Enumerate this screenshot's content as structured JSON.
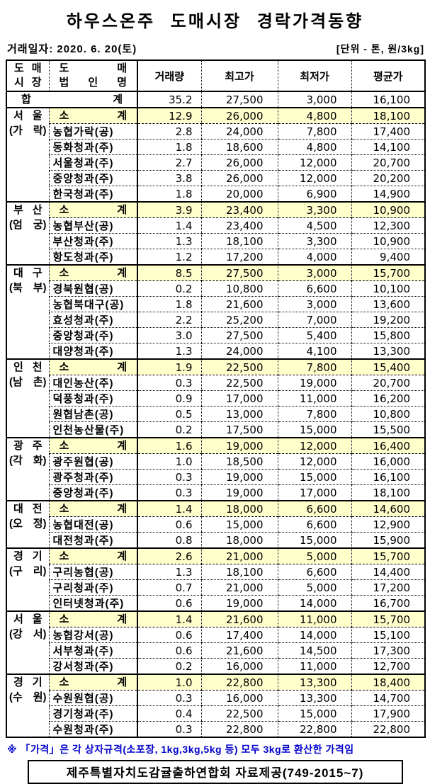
{
  "title": "하우스온주 도매시장 경락가격동향",
  "meta": {
    "date": "거래일자: 2020. 6. 20(토)",
    "unit": "[단위 - 톤, 원/3kg]"
  },
  "table": {
    "headers": {
      "market_line1": "도 매",
      "market_line2": "시 장",
      "corp_line1": "도 매",
      "corp_line2": "법 인 명",
      "volume": "거래량",
      "high": "최고가",
      "low": "최저가",
      "avg": "평균가"
    },
    "total": {
      "label": "합 계",
      "volume": "35.2",
      "high": "27,500",
      "low": "3,000",
      "avg": "16,100"
    },
    "subtotal_label": "소 계",
    "groups": [
      {
        "market": "서 울",
        "location": "(가 락)",
        "subtotal": {
          "volume": "12.9",
          "high": "26,000",
          "low": "4,800",
          "avg": "18,100"
        },
        "companies": [
          {
            "name": "농협가락(공)",
            "volume": "2.8",
            "high": "24,000",
            "low": "7,800",
            "avg": "17,400"
          },
          {
            "name": "동화청과(주)",
            "volume": "1.8",
            "high": "18,600",
            "low": "4,800",
            "avg": "14,100"
          },
          {
            "name": "서울청과(주)",
            "volume": "2.7",
            "high": "26,000",
            "low": "12,000",
            "avg": "20,700"
          },
          {
            "name": "중앙청과(주)",
            "volume": "3.8",
            "high": "26,000",
            "low": "12,000",
            "avg": "20,200"
          },
          {
            "name": "한국청과(주)",
            "volume": "1.8",
            "high": "20,000",
            "low": "6,900",
            "avg": "14,900"
          }
        ]
      },
      {
        "market": "부 산",
        "location": "(엄 궁)",
        "subtotal": {
          "volume": "3.9",
          "high": "23,400",
          "low": "3,300",
          "avg": "10,900"
        },
        "companies": [
          {
            "name": "농협부산(공)",
            "volume": "1.4",
            "high": "23,400",
            "low": "4,500",
            "avg": "12,300"
          },
          {
            "name": "부산청과(주)",
            "volume": "1.3",
            "high": "18,100",
            "low": "3,300",
            "avg": "10,900"
          },
          {
            "name": "항도청과(주)",
            "volume": "1.2",
            "high": "17,200",
            "low": "4,000",
            "avg": "9,400"
          }
        ]
      },
      {
        "market": "대 구",
        "location": "(북 부)",
        "subtotal": {
          "volume": "8.5",
          "high": "27,500",
          "low": "3,000",
          "avg": "15,700"
        },
        "companies": [
          {
            "name": "경북원협(공)",
            "volume": "0.2",
            "high": "10,800",
            "low": "6,600",
            "avg": "10,100"
          },
          {
            "name": "농협북대구(공)",
            "volume": "1.8",
            "high": "21,600",
            "low": "3,000",
            "avg": "13,600"
          },
          {
            "name": "효성청과(주)",
            "volume": "2.2",
            "high": "25,200",
            "low": "7,000",
            "avg": "19,200"
          },
          {
            "name": "중앙청과(주)",
            "volume": "3.0",
            "high": "27,500",
            "low": "5,400",
            "avg": "15,800"
          },
          {
            "name": "대양청과(주)",
            "volume": "1.3",
            "high": "24,000",
            "low": "4,100",
            "avg": "13,300"
          }
        ]
      },
      {
        "market": "인 천",
        "location": "(남 촌)",
        "subtotal": {
          "volume": "1.9",
          "high": "22,500",
          "low": "7,800",
          "avg": "15,400"
        },
        "companies": [
          {
            "name": "대인농산(주)",
            "volume": "0.3",
            "high": "22,500",
            "low": "19,000",
            "avg": "20,700"
          },
          {
            "name": "덕풍청과(주)",
            "volume": "0.9",
            "high": "17,000",
            "low": "11,000",
            "avg": "16,200"
          },
          {
            "name": "원협남촌(공)",
            "volume": "0.5",
            "high": "13,000",
            "low": "7,800",
            "avg": "10,800"
          },
          {
            "name": "인천농산물(주)",
            "volume": "0.2",
            "high": "17,500",
            "low": "15,000",
            "avg": "15,500"
          }
        ]
      },
      {
        "market": "광 주",
        "location": "(각 화)",
        "subtotal": {
          "volume": "1.6",
          "high": "19,000",
          "low": "12,000",
          "avg": "16,400"
        },
        "companies": [
          {
            "name": "광주원협(공)",
            "volume": "1.0",
            "high": "18,500",
            "low": "12,000",
            "avg": "16,000"
          },
          {
            "name": "광주청과(주)",
            "volume": "0.3",
            "high": "19,000",
            "low": "15,000",
            "avg": "16,100"
          },
          {
            "name": "중앙청과(주)",
            "volume": "0.3",
            "high": "19,000",
            "low": "17,000",
            "avg": "18,100"
          }
        ]
      },
      {
        "market": "대 전",
        "location": "(오 정)",
        "subtotal": {
          "volume": "1.4",
          "high": "18,000",
          "low": "6,600",
          "avg": "14,600"
        },
        "companies": [
          {
            "name": "농협대전(공)",
            "volume": "0.6",
            "high": "15,000",
            "low": "6,600",
            "avg": "12,900"
          },
          {
            "name": "대전청과(주)",
            "volume": "0.8",
            "high": "18,000",
            "low": "15,000",
            "avg": "15,900"
          }
        ]
      },
      {
        "market": "경 기",
        "location": "(구 리)",
        "subtotal": {
          "volume": "2.6",
          "high": "21,000",
          "low": "5,000",
          "avg": "15,700"
        },
        "companies": [
          {
            "name": "구리농협(공)",
            "volume": "1.3",
            "high": "18,100",
            "low": "6,600",
            "avg": "14,400"
          },
          {
            "name": "구리청과(주)",
            "volume": "0.7",
            "high": "21,000",
            "low": "5,000",
            "avg": "17,200"
          },
          {
            "name": "인터넷청과(주)",
            "volume": "0.6",
            "high": "19,000",
            "low": "14,000",
            "avg": "16,700"
          }
        ]
      },
      {
        "market": "서 울",
        "location": "(강 서)",
        "subtotal": {
          "volume": "1.4",
          "high": "21,600",
          "low": "11,000",
          "avg": "15,700"
        },
        "companies": [
          {
            "name": "농협강서(공)",
            "volume": "0.6",
            "high": "17,400",
            "low": "14,000",
            "avg": "15,100"
          },
          {
            "name": "서부청과(주)",
            "volume": "0.6",
            "high": "21,600",
            "low": "14,500",
            "avg": "17,300"
          },
          {
            "name": "강서청과(주)",
            "volume": "0.2",
            "high": "16,000",
            "low": "11,000",
            "avg": "12,700"
          }
        ]
      },
      {
        "market": "경 기",
        "location": "(수 원)",
        "subtotal": {
          "volume": "1.0",
          "high": "22,800",
          "low": "13,300",
          "avg": "18,400"
        },
        "companies": [
          {
            "name": "수원원협(공)",
            "volume": "0.3",
            "high": "16,000",
            "low": "13,300",
            "avg": "14,700"
          },
          {
            "name": "경기청과(주)",
            "volume": "0.4",
            "high": "22,500",
            "low": "15,000",
            "avg": "17,900"
          },
          {
            "name": "수원청과(주)",
            "volume": "0.3",
            "high": "22,800",
            "low": "22,800",
            "avg": "22,800"
          }
        ]
      }
    ]
  },
  "footer": {
    "note": "※ 「가격」은 각 상자규격(소포장, 1kg,3kg,5kg 등) 모두 3kg로 환산한 가격임",
    "source": "제주특별자치도감귤출하연합회 자료제공(749-2015~7)"
  },
  "colors": {
    "subtotal_bg": "#FFFFCC",
    "note": "#0000CC"
  }
}
